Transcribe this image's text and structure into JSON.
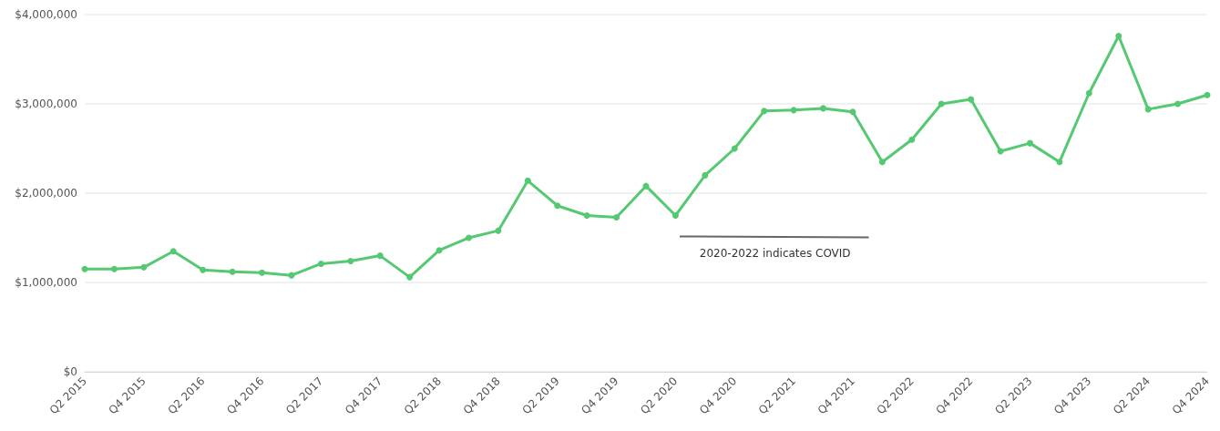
{
  "chart_data": {
    "type": "line",
    "categories": [
      "Q2 2015",
      null,
      "Q4 2015",
      null,
      "Q2 2016",
      null,
      "Q4 2016",
      null,
      "Q2 2017",
      null,
      "Q4 2017",
      null,
      "Q2 2018",
      null,
      "Q4 2018",
      null,
      "Q2 2019",
      null,
      "Q4 2019",
      null,
      "Q2 2020",
      null,
      "Q4 2020",
      null,
      "Q2 2021",
      null,
      "Q4 2021",
      null,
      "Q2 2022",
      null,
      "Q4 2022",
      null,
      "Q2 2023",
      null,
      "Q4 2023",
      null,
      "Q2 2024",
      null,
      "Q4 2024"
    ],
    "series": [
      {
        "color": "#55c872",
        "values": [
          1150000,
          1150000,
          1170000,
          1350000,
          1140000,
          1120000,
          1110000,
          1080000,
          1210000,
          1240000,
          1300000,
          1060000,
          1360000,
          1500000,
          1580000,
          2140000,
          1860000,
          1750000,
          1730000,
          2080000,
          1750000,
          2200000,
          2500000,
          2920000,
          2930000,
          2950000,
          2910000,
          2350000,
          2600000,
          3000000,
          3050000,
          2470000,
          2560000,
          2350000,
          3120000,
          3760000,
          2940000,
          3000000,
          3100000
        ]
      }
    ],
    "ylim": [
      0,
      4000000
    ],
    "yticks": [
      {
        "value": 0,
        "label": "$0"
      },
      {
        "value": 1000000,
        "label": "$1,000,000"
      },
      {
        "value": 2000000,
        "label": "$2,000,000"
      },
      {
        "value": 3000000,
        "label": "$3,000,000"
      },
      {
        "value": 4000000,
        "label": "$4,000,000"
      }
    ],
    "grid": "y",
    "marker": "circle",
    "line_style": "solid",
    "annotations": [
      "2020-2022 indicates COVID"
    ]
  }
}
